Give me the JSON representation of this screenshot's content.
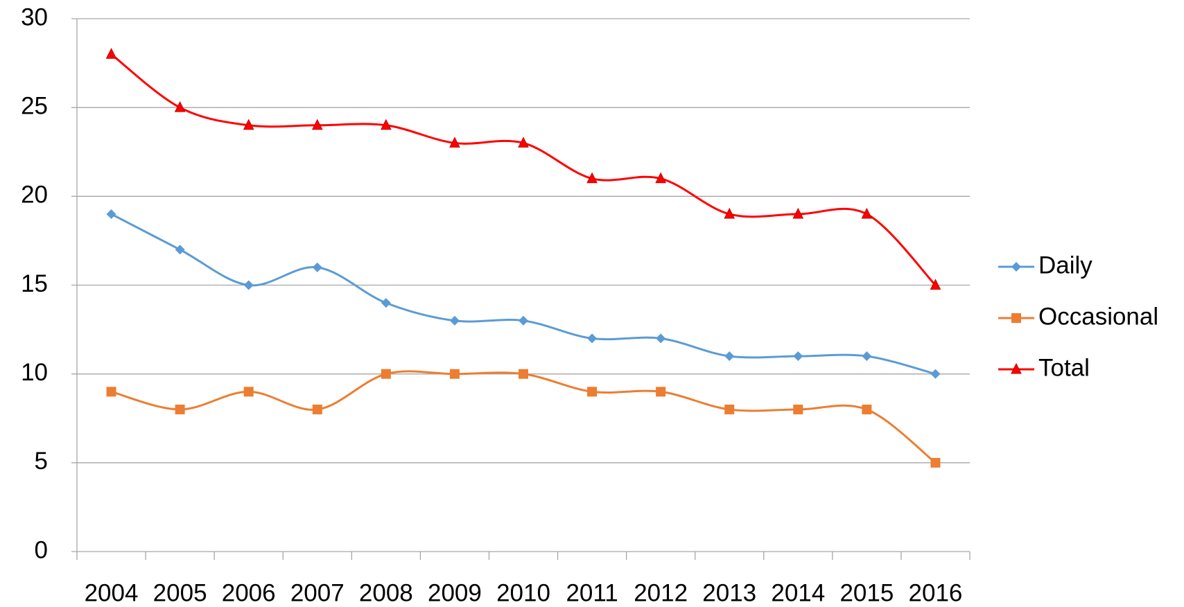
{
  "chart_data": {
    "type": "line",
    "categories": [
      "2004",
      "2005",
      "2006",
      "2007",
      "2008",
      "2009",
      "2010",
      "2011",
      "2012",
      "2013",
      "2014",
      "2015",
      "2016"
    ],
    "series": [
      {
        "name": "Daily",
        "color": "#5b9bd5",
        "marker": "diamond",
        "values": [
          19,
          17,
          15,
          16,
          14,
          13,
          13,
          12,
          12,
          11,
          11,
          11,
          10
        ]
      },
      {
        "name": "Occasional",
        "color": "#ed7d31",
        "marker": "square",
        "values": [
          9,
          8,
          9,
          8,
          10,
          10,
          10,
          9,
          9,
          8,
          8,
          8,
          5
        ]
      },
      {
        "name": "Total",
        "color": "#ff0000",
        "marker": "triangle",
        "values": [
          28,
          25,
          24,
          24,
          24,
          23,
          23,
          21,
          21,
          19,
          19,
          19,
          15
        ]
      }
    ],
    "ylim": [
      0,
      30
    ],
    "yticks": [
      0,
      5,
      10,
      15,
      20,
      25,
      30
    ],
    "grid": true,
    "smooth": true,
    "legend": "right"
  }
}
